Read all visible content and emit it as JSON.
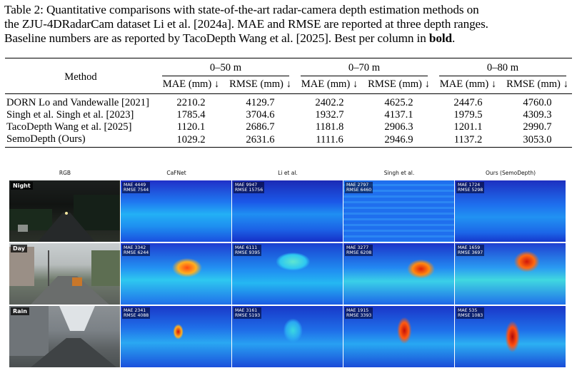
{
  "caption": {
    "line1": "Table 2: Quantitative comparisons with state-of-the-art radar-camera depth estimation methods on",
    "line2": "the ZJU-4DRadarCam dataset Li et al. [2024a]. MAE and RMSE are reported at three depth ranges.",
    "line3_pre": "Baseline numbers are as reported by TacoDepth Wang et al. [2025]. Best per column in ",
    "line3_bold": "bold",
    "line3_post": "."
  },
  "table": {
    "method_header": "Method",
    "ranges": [
      "0–50 m",
      "0–70 m",
      "0–80 m"
    ],
    "metric_headers": [
      "MAE (mm) ↓",
      "RMSE (mm) ↓",
      "MAE (mm) ↓",
      "RMSE (mm) ↓",
      "MAE (mm) ↓",
      "RMSE (mm) ↓"
    ],
    "rows": [
      {
        "method": "DORN Lo and Vandewalle [2021]",
        "values": [
          "2210.2",
          "4129.7",
          "2402.2",
          "4625.2",
          "2447.6",
          "4760.0"
        ]
      },
      {
        "method": "Singh et al. Singh et al. [2023]",
        "values": [
          "1785.4",
          "3704.6",
          "1932.7",
          "4137.1",
          "1979.5",
          "4309.3"
        ]
      },
      {
        "method": "TacoDepth Wang et al. [2025]",
        "values": [
          "1120.1",
          "2686.7",
          "1181.8",
          "2906.3",
          "1201.1",
          "2990.7"
        ]
      },
      {
        "method": "SemoDepth (Ours)",
        "values": [
          "1029.2",
          "2631.6",
          "1111.6",
          "2946.9",
          "1137.2",
          "3053.0"
        ]
      }
    ]
  },
  "figure": {
    "columns": [
      "RGB",
      "CaFNet",
      "Li et al.",
      "Singh et al.",
      "Ours (SemoDepth)"
    ],
    "rows": [
      {
        "label": "Night",
        "metrics": [
          [
            "MAE 4449",
            "RMSE 7544"
          ],
          [
            "MAE 9947",
            "RMSE 15756"
          ],
          [
            "MAE 2797",
            "RMSE 6460"
          ],
          [
            "MAE 1724",
            "RMSE 5298"
          ]
        ]
      },
      {
        "label": "Day",
        "metrics": [
          [
            "MAE 3342",
            "RMSE 6244"
          ],
          [
            "MAE 6111",
            "RMSE 9395"
          ],
          [
            "MAE 3277",
            "RMSE 6208"
          ],
          [
            "MAE 1659",
            "RMSE 3697"
          ]
        ]
      },
      {
        "label": "Rain",
        "metrics": [
          [
            "MAE 2341",
            "RMSE 4088"
          ],
          [
            "MAE 3161",
            "RMSE 5193"
          ],
          [
            "MAE 1915",
            "RMSE 3393"
          ],
          [
            "MAE 535",
            "RMSE 1083"
          ]
        ]
      }
    ]
  }
}
